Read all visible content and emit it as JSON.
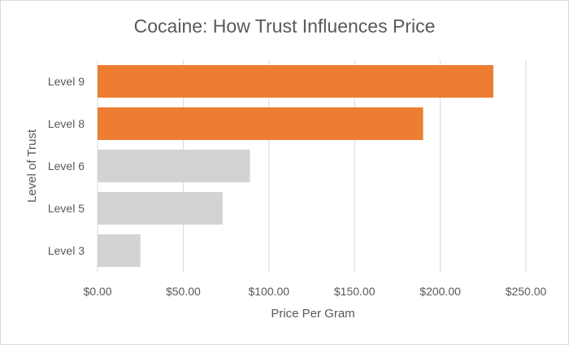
{
  "chart_data": {
    "type": "bar",
    "orientation": "horizontal",
    "title": "Cocaine: How Trust Influences Price",
    "xlabel": "Price Per Gram",
    "ylabel": "Level of Trust",
    "categories": [
      "Level 9",
      "Level 8",
      "Level 6",
      "Level 5",
      "Level 3"
    ],
    "values": [
      231,
      190,
      89,
      73,
      25
    ],
    "bar_colors": [
      "#ED7D31",
      "#ED7D31",
      "#D3D3D3",
      "#D3D3D3",
      "#D3D3D3"
    ],
    "xlim": [
      0,
      250
    ],
    "xticks": [
      0,
      50,
      100,
      150,
      200,
      250
    ],
    "xtick_labels": [
      "$0.00",
      "$50.00",
      "$100.00",
      "$150.00",
      "$200.00",
      "$250.00"
    ],
    "grid": true,
    "legend": "none"
  }
}
